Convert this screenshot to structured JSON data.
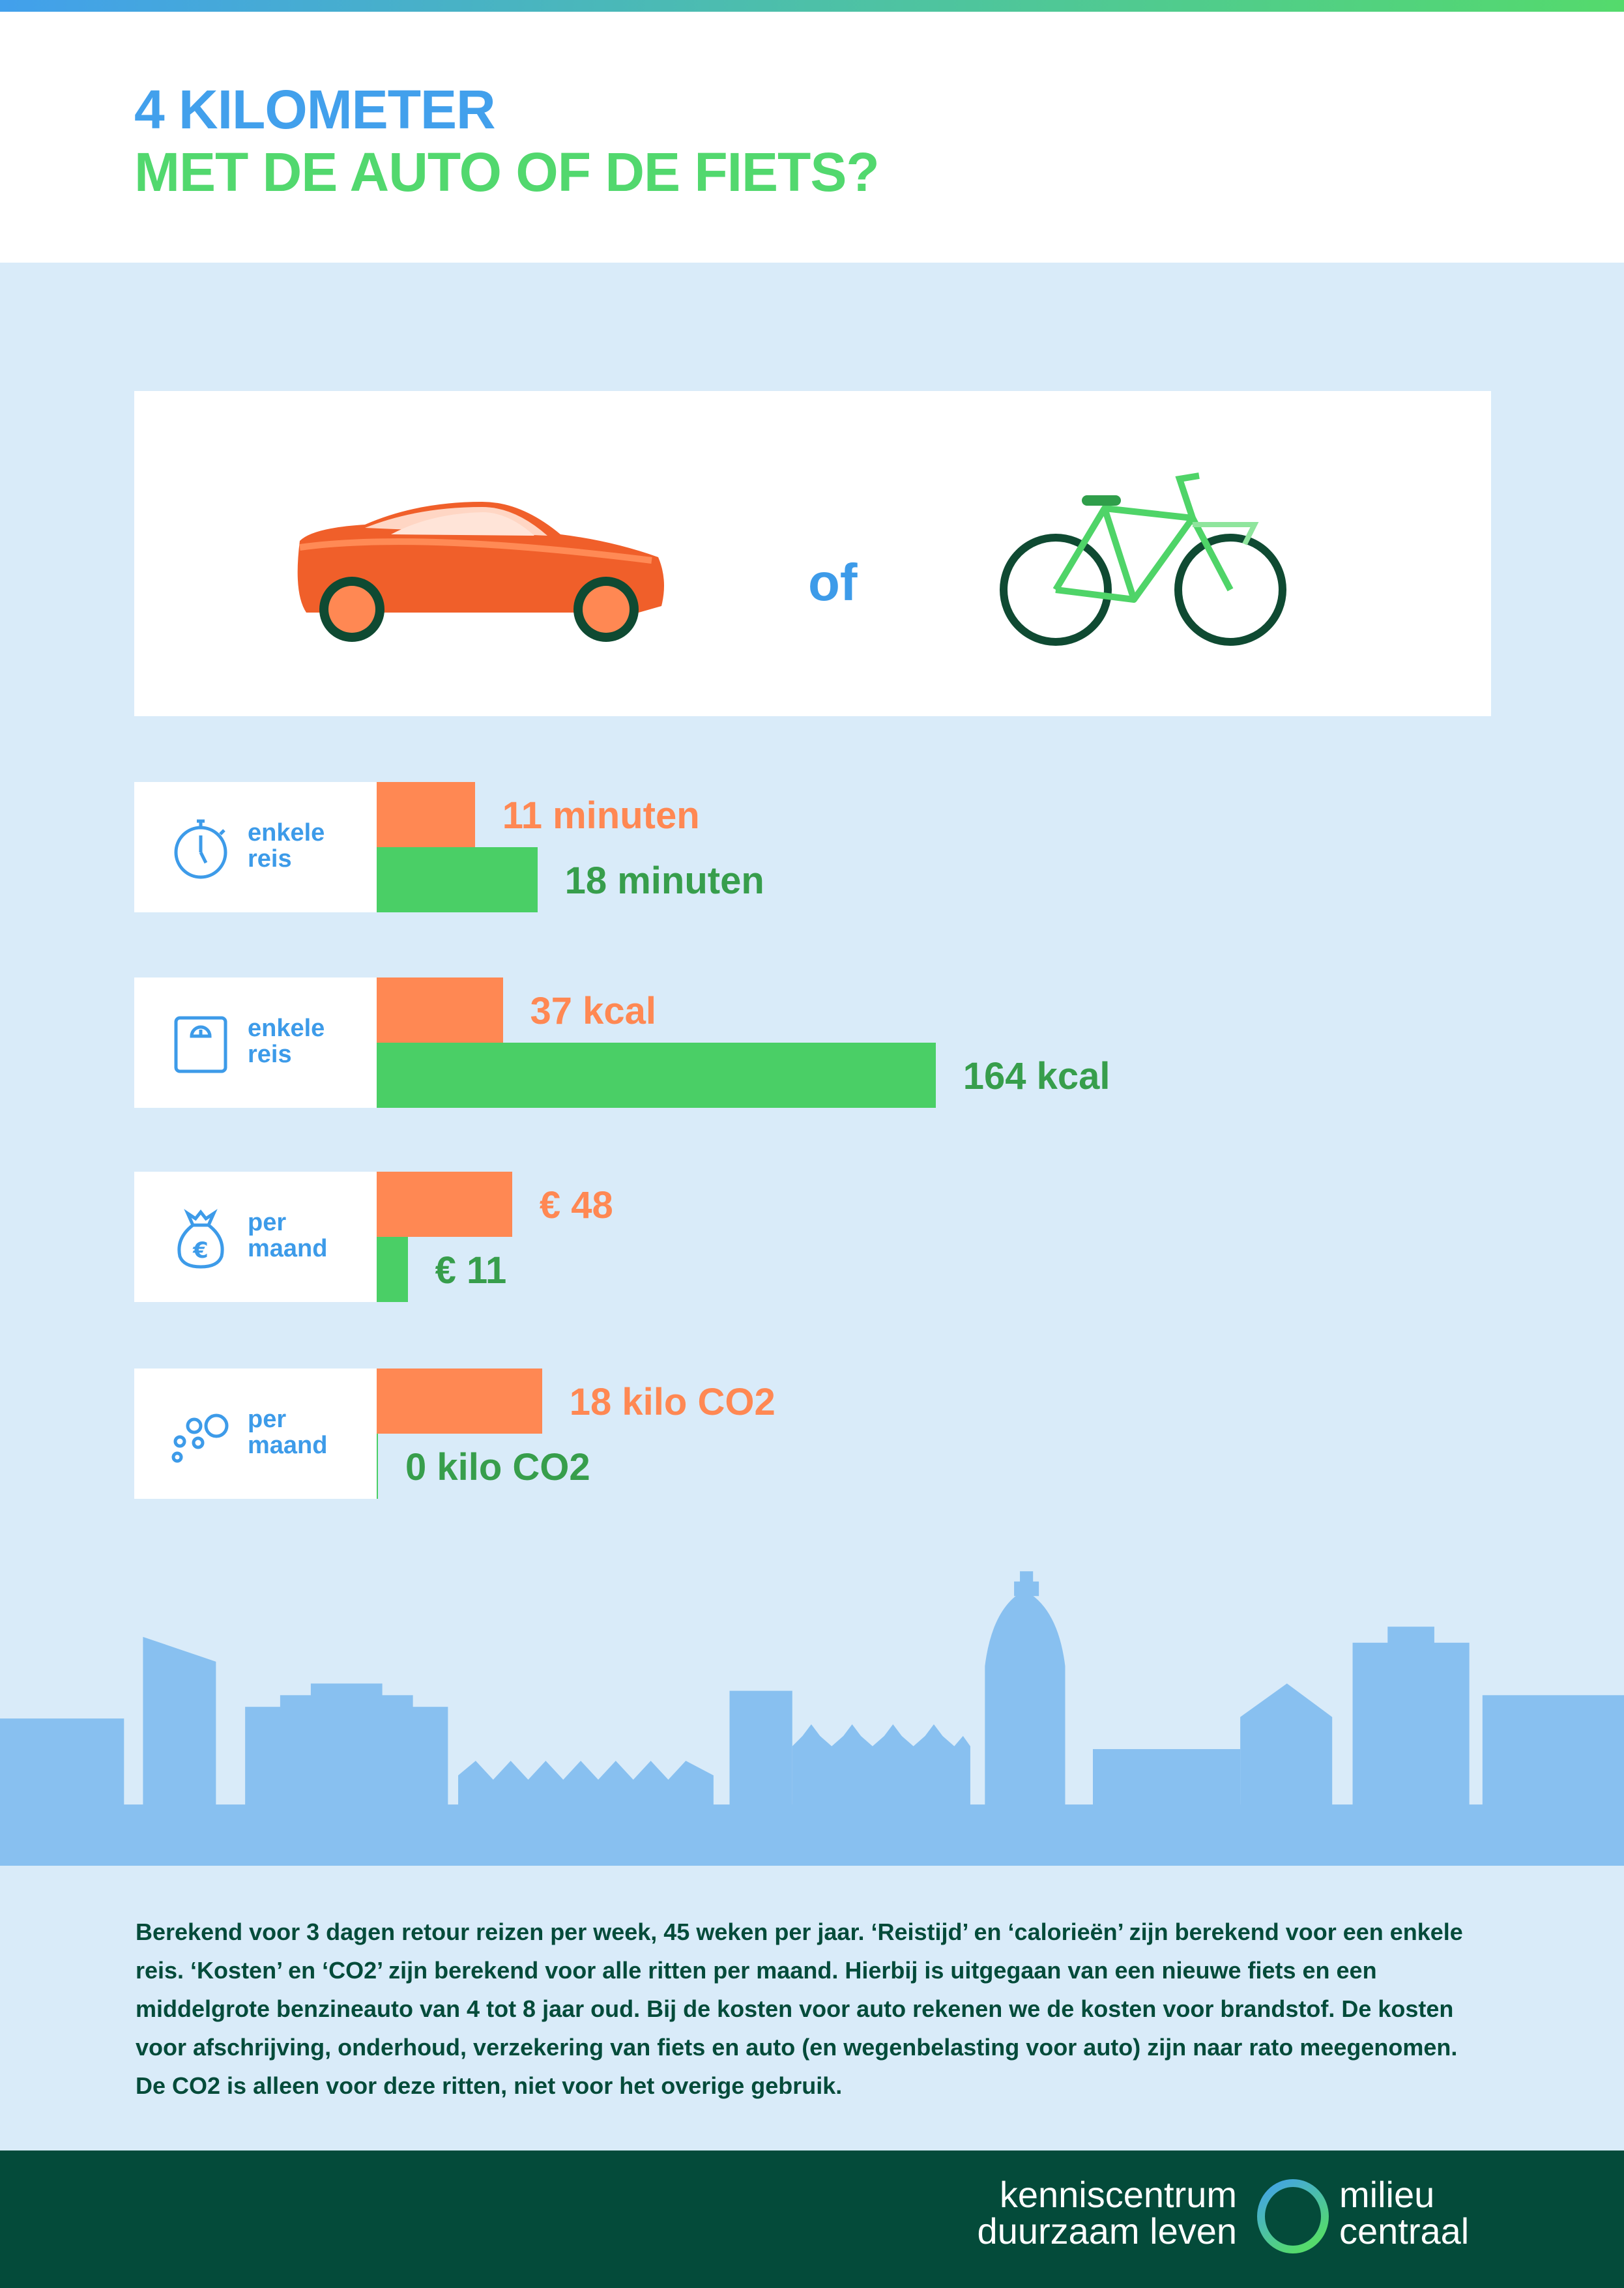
{
  "header": {
    "title_line1": "4 KILOMETER",
    "title_line2": "MET DE AUTO OF DE FIETS?"
  },
  "comparison": {
    "connector": "of",
    "car_icon": "car-icon",
    "bike_icon": "bicycle-icon"
  },
  "colors": {
    "car": "#ff8853",
    "bike": "#4acf66",
    "bike_label": "#379e4c",
    "accent_blue": "#42a0ec",
    "dark_green": "#044b3a",
    "background": "#d9ebf9",
    "skyline": "#88c0f0"
  },
  "chart_data": {
    "type": "bar",
    "series": [
      {
        "name": "auto"
      },
      {
        "name": "fiets"
      }
    ],
    "rows": [
      {
        "metric_icon": "stopwatch-icon",
        "label_line1": "enkele",
        "label_line2": "reis",
        "car_value": 11,
        "bike_value": 18,
        "car_label": "11 minuten",
        "bike_label": "18 minuten"
      },
      {
        "metric_icon": "scale-icon",
        "label_line1": "enkele",
        "label_line2": "reis",
        "car_value": 37,
        "bike_value": 164,
        "car_label": "37 kcal",
        "bike_label": "164 kcal"
      },
      {
        "metric_icon": "money-bag-icon",
        "label_line1": "per",
        "label_line2": "maand",
        "car_value": 48,
        "bike_value": 11,
        "car_label": "€ 48",
        "bike_label": "€ 11"
      },
      {
        "metric_icon": "bubbles-icon",
        "label_line1": "per",
        "label_line2": "maand",
        "car_value": 18,
        "bike_value": 0,
        "car_label": "18 kilo CO2",
        "bike_label": "0 kilo CO2"
      }
    ]
  },
  "footnote": "Berekend voor 3 dagen retour reizen per week, 45 weken per jaar. ‘Reistijd’ en ‘calorieën’ zijn berekend voor een enkele reis. ‘Kosten’ en ‘CO2’ zijn berekend voor alle ritten per maand. Hierbij is uitgegaan van een nieuwe fiets en een middelgrote benzineauto van 4 tot 8 jaar oud. Bij de kosten voor auto rekenen we de kosten voor brandstof. De kosten voor afschrijving, onderhoud, verzekering van fiets en auto (en wegenbelasting voor auto) zijn naar rato meegenomen. De CO2 is alleen voor deze ritten, niet voor het overige gebruik.",
  "footer": {
    "logo_left_line1": "kenniscentrum",
    "logo_left_line2": "duurzaam leven",
    "logo_right_line1": "milieu",
    "logo_right_line2": "centraal"
  }
}
